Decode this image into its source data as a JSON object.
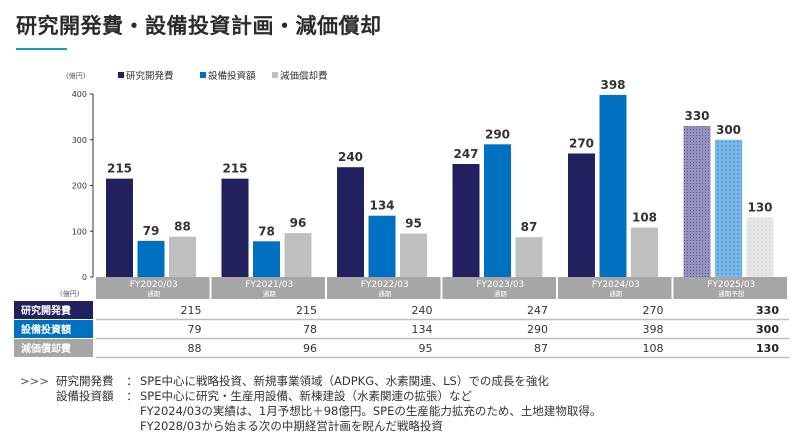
{
  "title": "研究開発費・設備投資計画・減価償却",
  "chart_data": {
    "type": "bar",
    "title": "研究開発費・設備投資計画・減価償却",
    "ylabel": "(億円)",
    "xlabel": "",
    "ylim": [
      0,
      400
    ],
    "yticks": [
      0,
      100,
      200,
      300,
      400
    ],
    "grid": false,
    "legend_position": "top-left",
    "categories": [
      "FY2020/03",
      "FY2021/03",
      "FY2022/03",
      "FY2023/03",
      "FY2024/03",
      "FY2025/03"
    ],
    "category_sub": [
      "通期",
      "通期",
      "通期",
      "通期",
      "通期",
      "通期予想"
    ],
    "forecast_index": 5,
    "series": [
      {
        "name": "研究開発費",
        "color": "#22215f",
        "forecast_color": "#8a86b5",
        "values": [
          215,
          215,
          240,
          247,
          270,
          330
        ]
      },
      {
        "name": "設備投資額",
        "color": "#0070c0",
        "forecast_color": "#6cb0e3",
        "values": [
          79,
          78,
          134,
          290,
          398,
          300
        ]
      },
      {
        "name": "減価償却費",
        "color": "#bfbfbf",
        "forecast_color": "#e0e0e0",
        "values": [
          88,
          96,
          95,
          87,
          108,
          130
        ]
      }
    ],
    "table": {
      "unit_label": "(億円)",
      "header_color": "#a6a6a6",
      "rows": [
        {
          "label": "研究開発費",
          "color": "#22215f"
        },
        {
          "label": "設備投資額",
          "color": "#0070c0"
        },
        {
          "label": "減価償却費",
          "color": "#a6a6a6"
        }
      ]
    }
  },
  "notes": {
    "arrow": ">>>",
    "items": [
      {
        "label": "研究開発費",
        "lines": [
          "SPE中心に戦略投資、新規事業領域（ADPKG、水素関連、LS）での成長を強化"
        ]
      },
      {
        "label": "設備投資額",
        "lines": [
          "SPE中心に研究・生産用設備、新棟建設（水素関連の拡張）など",
          "FY2024/03の実績は、1月予想比＋98億円。SPEの生産能力拡充のため、土地建物取得。",
          "FY2028/03から始まる次の中期経営計画を睨んだ戦略投資"
        ]
      }
    ]
  }
}
